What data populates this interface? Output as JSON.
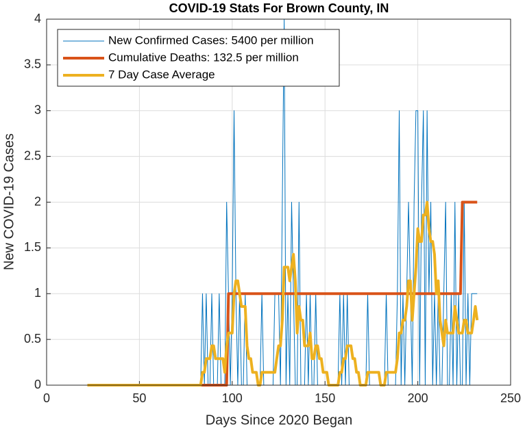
{
  "chart_data": {
    "type": "line",
    "title": "COVID-19 Stats For Brown County, IN",
    "x_label": "Days Since 2020 Began",
    "y_label": "New COVID-19 Cases",
    "xlim": [
      0,
      250
    ],
    "xticks": [
      0,
      50,
      100,
      150,
      200,
      250
    ],
    "ylim": [
      0,
      4
    ],
    "yticks": [
      0,
      0.5,
      1,
      1.5,
      2,
      2.5,
      3,
      3.5,
      4
    ],
    "grid": true,
    "legend_position": "upper-left",
    "x": [
      22,
      23,
      24,
      25,
      26,
      27,
      28,
      29,
      30,
      31,
      32,
      33,
      34,
      35,
      36,
      37,
      38,
      39,
      40,
      41,
      42,
      43,
      44,
      45,
      46,
      47,
      48,
      49,
      50,
      51,
      52,
      53,
      54,
      55,
      56,
      57,
      58,
      59,
      60,
      61,
      62,
      63,
      64,
      65,
      66,
      67,
      68,
      69,
      70,
      71,
      72,
      73,
      74,
      75,
      76,
      77,
      78,
      79,
      80,
      81,
      82,
      83,
      84,
      85,
      86,
      87,
      88,
      89,
      90,
      91,
      92,
      93,
      94,
      95,
      96,
      97,
      98,
      99,
      100,
      101,
      102,
      103,
      104,
      105,
      106,
      107,
      108,
      109,
      110,
      111,
      112,
      113,
      114,
      115,
      116,
      117,
      118,
      119,
      120,
      121,
      122,
      123,
      124,
      125,
      126,
      127,
      128,
      129,
      130,
      131,
      132,
      133,
      134,
      135,
      136,
      137,
      138,
      139,
      140,
      141,
      142,
      143,
      144,
      145,
      146,
      147,
      148,
      149,
      150,
      151,
      152,
      153,
      154,
      155,
      156,
      157,
      158,
      159,
      160,
      161,
      162,
      163,
      164,
      165,
      166,
      167,
      168,
      169,
      170,
      171,
      172,
      173,
      174,
      175,
      176,
      177,
      178,
      179,
      180,
      181,
      182,
      183,
      184,
      185,
      186,
      187,
      188,
      189,
      190,
      191,
      192,
      193,
      194,
      195,
      196,
      197,
      198,
      199,
      200,
      201,
      202,
      203,
      204,
      205,
      206,
      207,
      208,
      209,
      210,
      211,
      212,
      213,
      214,
      215,
      216,
      217,
      218,
      219,
      220,
      221,
      222,
      223,
      224,
      225,
      226,
      227,
      228,
      229,
      230,
      231,
      232
    ],
    "series": [
      {
        "name": "New Confirmed Cases: 5400 per million",
        "color": "#0072BD",
        "width": 1,
        "values": [
          0,
          0,
          0,
          0,
          0,
          0,
          0,
          0,
          0,
          0,
          0,
          0,
          0,
          0,
          0,
          0,
          0,
          0,
          0,
          0,
          0,
          0,
          0,
          0,
          0,
          0,
          0,
          0,
          0,
          0,
          0,
          0,
          0,
          0,
          0,
          0,
          0,
          0,
          0,
          0,
          0,
          0,
          0,
          0,
          0,
          0,
          0,
          0,
          0,
          0,
          0,
          0,
          0,
          0,
          0,
          0,
          0,
          0,
          0,
          0,
          0,
          0,
          1,
          0,
          1,
          0,
          0,
          1,
          0,
          0,
          0,
          1,
          0,
          0,
          0,
          2,
          1,
          0,
          1,
          3,
          1,
          0,
          1,
          0,
          0,
          1,
          0,
          0,
          0,
          0,
          0,
          0,
          0,
          0,
          1,
          0,
          0,
          0,
          0,
          0,
          0,
          1,
          1,
          1,
          0,
          2,
          4,
          0,
          1,
          0,
          2,
          1,
          0,
          0,
          2,
          0,
          0,
          0,
          1,
          0,
          1,
          0,
          0,
          1,
          0,
          0,
          0,
          0,
          0,
          0,
          0,
          0,
          0,
          0,
          0,
          0,
          1,
          0,
          1,
          0,
          1,
          0,
          0,
          0,
          0,
          0,
          0,
          0,
          0,
          0,
          0,
          1,
          0,
          0,
          0,
          0,
          0,
          0,
          0,
          0,
          0,
          1,
          0,
          0,
          0,
          0,
          0,
          1,
          3,
          0,
          1,
          0,
          1,
          2,
          1,
          0,
          2,
          3,
          3,
          0,
          2,
          3,
          0,
          3,
          1,
          2,
          0,
          1,
          0,
          1,
          0,
          0,
          1,
          2,
          0,
          0,
          1,
          0,
          2,
          0,
          1,
          0,
          0,
          2,
          0,
          1,
          0,
          1,
          1,
          1,
          1
        ]
      },
      {
        "name": "Cumulative Deaths: 132.5 per million",
        "color": "#D95319",
        "width": 4,
        "values": [
          0,
          0,
          0,
          0,
          0,
          0,
          0,
          0,
          0,
          0,
          0,
          0,
          0,
          0,
          0,
          0,
          0,
          0,
          0,
          0,
          0,
          0,
          0,
          0,
          0,
          0,
          0,
          0,
          0,
          0,
          0,
          0,
          0,
          0,
          0,
          0,
          0,
          0,
          0,
          0,
          0,
          0,
          0,
          0,
          0,
          0,
          0,
          0,
          0,
          0,
          0,
          0,
          0,
          0,
          0,
          0,
          0,
          0,
          0,
          0,
          0,
          0,
          0,
          0,
          0,
          0,
          0,
          0,
          0,
          0,
          0,
          0,
          0,
          0,
          0,
          0,
          1,
          1,
          1,
          1,
          1,
          1,
          1,
          1,
          1,
          1,
          1,
          1,
          1,
          1,
          1,
          1,
          1,
          1,
          1,
          1,
          1,
          1,
          1,
          1,
          1,
          1,
          1,
          1,
          1,
          1,
          1,
          1,
          1,
          1,
          1,
          1,
          1,
          1,
          1,
          1,
          1,
          1,
          1,
          1,
          1,
          1,
          1,
          1,
          1,
          1,
          1,
          1,
          1,
          1,
          1,
          1,
          1,
          1,
          1,
          1,
          1,
          1,
          1,
          1,
          1,
          1,
          1,
          1,
          1,
          1,
          1,
          1,
          1,
          1,
          1,
          1,
          1,
          1,
          1,
          1,
          1,
          1,
          1,
          1,
          1,
          1,
          1,
          1,
          1,
          1,
          1,
          1,
          1,
          1,
          1,
          1,
          1,
          1,
          1,
          1,
          1,
          1,
          1,
          1,
          1,
          1,
          1,
          1,
          1,
          1,
          1,
          1,
          1,
          1,
          1,
          1,
          1,
          1,
          1,
          1,
          1,
          1,
          1,
          1,
          1,
          1,
          2,
          2,
          2,
          2,
          2,
          2,
          2,
          2,
          2
        ]
      },
      {
        "name": "7 Day Case Average",
        "color": "#EDB120",
        "width": 4,
        "values": [
          0,
          0,
          0,
          0,
          0,
          0,
          0,
          0,
          0,
          0,
          0,
          0,
          0,
          0,
          0,
          0,
          0,
          0,
          0,
          0,
          0,
          0,
          0,
          0,
          0,
          0,
          0,
          0,
          0,
          0,
          0,
          0,
          0,
          0,
          0,
          0,
          0,
          0,
          0,
          0,
          0,
          0,
          0,
          0,
          0,
          0,
          0,
          0,
          0,
          0,
          0,
          0,
          0,
          0,
          0,
          0,
          0,
          0,
          0,
          0,
          0,
          0,
          0.14,
          0.14,
          0.29,
          0.29,
          0.29,
          0.43,
          0.43,
          0.29,
          0.29,
          0.29,
          0.29,
          0.29,
          0.14,
          0.43,
          0.57,
          0.57,
          0.57,
          1,
          1.14,
          1.14,
          1,
          0.86,
          0.86,
          0.86,
          0.43,
          0.29,
          0.29,
          0.14,
          0.14,
          0.14,
          0,
          0,
          0.14,
          0.14,
          0.14,
          0.14,
          0.14,
          0.14,
          0.14,
          0.14,
          0.29,
          0.43,
          0.43,
          0.71,
          1.29,
          1.29,
          1.29,
          1.14,
          1.29,
          1.43,
          1.14,
          0.57,
          0.86,
          0.71,
          0.71,
          0.43,
          0.43,
          0.43,
          0.57,
          0.29,
          0.29,
          0.43,
          0.43,
          0.29,
          0.29,
          0.14,
          0.14,
          0.14,
          0,
          0,
          0,
          0,
          0,
          0,
          0.14,
          0.14,
          0.29,
          0.29,
          0.43,
          0.43,
          0.43,
          0.29,
          0.29,
          0.14,
          0.14,
          0,
          0,
          0,
          0,
          0.14,
          0.14,
          0.14,
          0.14,
          0.14,
          0.14,
          0.14,
          0,
          0,
          0,
          0.14,
          0.14,
          0.14,
          0.14,
          0.14,
          0.14,
          0.29,
          0.57,
          0.57,
          0.71,
          0.71,
          0.86,
          1.14,
          1.14,
          0.71,
          1,
          1.29,
          1.71,
          1.57,
          1.57,
          1.86,
          1.86,
          2,
          1.71,
          1.57,
          1.57,
          1.43,
          1,
          1.14,
          0.71,
          0.57,
          0.43,
          0.71,
          0.57,
          0.57,
          0.57,
          0.57,
          0.86,
          0.71,
          0.57,
          0.57,
          0.57,
          0.71,
          0.71,
          0.57,
          0.57,
          0.57,
          0.71,
          0.86,
          0.71
        ]
      }
    ]
  }
}
